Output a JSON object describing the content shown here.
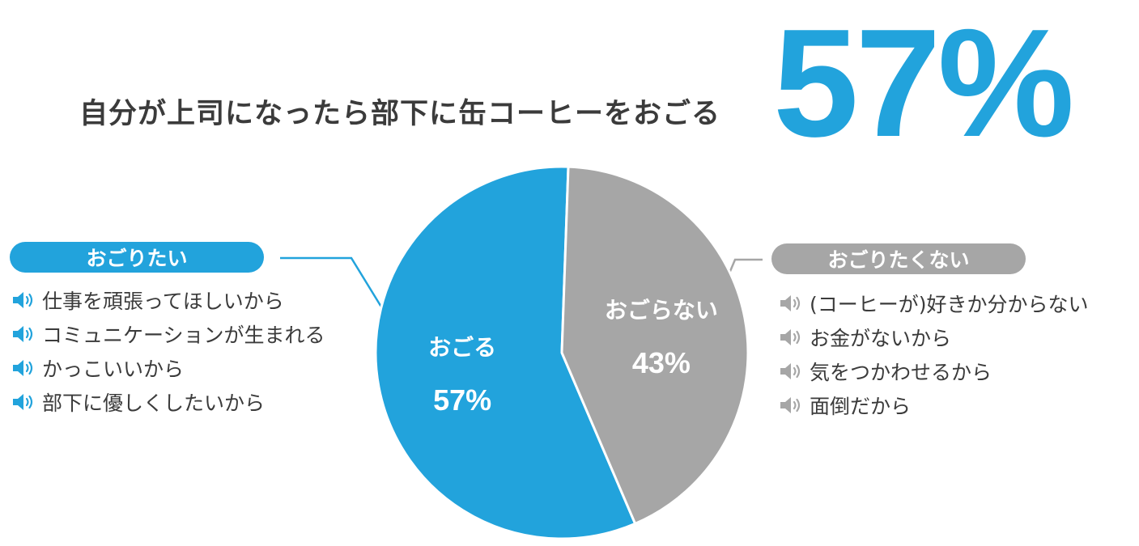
{
  "title": "自分が上司になったら部下に缶コーヒーをおごる",
  "headline_percent": "57%",
  "left_group": {
    "label": "おごりたい",
    "reasons": [
      "仕事を頑張ってほしいから",
      "コミュニケーションが生まれる",
      "かっこいいから",
      "部下に優しくしたいから"
    ]
  },
  "right_group": {
    "label": "おごりたくない",
    "reasons": [
      "(コーヒーが)好きか分からない",
      "お金がないから",
      "気をつかわせるから",
      "面倒だから"
    ]
  },
  "colors": {
    "accent": "#22a3dc",
    "gray": "#a6a6a6",
    "text": "#3b3b3b"
  },
  "icons": {
    "reason_bullet": "speaker-icon"
  },
  "chart_data": {
    "type": "pie",
    "categories": [
      "おごる",
      "おごらない"
    ],
    "values": [
      57,
      43
    ],
    "value_labels": [
      "57%",
      "43%"
    ],
    "colors": [
      "#22a3dc",
      "#a6a6a6"
    ],
    "start": "top",
    "direction": "counterclockwise"
  }
}
